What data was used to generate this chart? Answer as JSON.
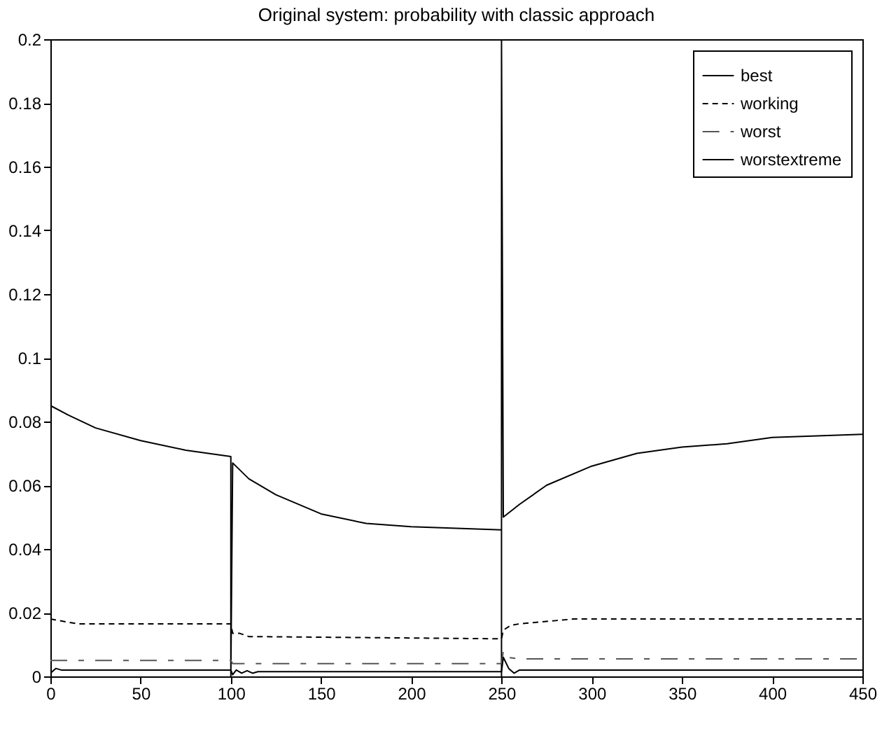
{
  "chart_data": {
    "type": "line",
    "title": "Original system: probability with classic approach",
    "xlim": [
      0,
      450
    ],
    "xticks": [
      0,
      50,
      100,
      150,
      200,
      250,
      300,
      350,
      400,
      450
    ],
    "ylim": [
      0,
      0.2
    ],
    "yticks": [
      0,
      0.02,
      0.04,
      0.06,
      0.08,
      0.1,
      0.12,
      0.14,
      0.16,
      0.18,
      0.2
    ],
    "grid": false,
    "legend": "top right",
    "marker": "none",
    "series": [
      {
        "name": "best",
        "color": "#000000",
        "line_style": "solid",
        "x": [
          0,
          10,
          25,
          50,
          75,
          100,
          100,
          101,
          110,
          125,
          150,
          175,
          200,
          225,
          250,
          250,
          250,
          251,
          260,
          275,
          300,
          325,
          350,
          375,
          400,
          425,
          450
        ],
        "values": [
          0.085,
          0.082,
          0.078,
          0.074,
          0.071,
          0.069,
          0,
          0.067,
          0.062,
          0.057,
          0.051,
          0.048,
          0.047,
          0.0465,
          0.046,
          0,
          0.2,
          0.05,
          0.054,
          0.06,
          0.066,
          0.07,
          0.072,
          0.073,
          0.075,
          0.0755,
          0.076
        ]
      },
      {
        "name": "working",
        "color": "#000000",
        "line_style": "dashed",
        "x": [
          0,
          5,
          15,
          100,
          101,
          105,
          110,
          250,
          251,
          255,
          260,
          280,
          290,
          450
        ],
        "values": [
          0.018,
          0.0175,
          0.0165,
          0.0165,
          0.0135,
          0.0135,
          0.0125,
          0.0118,
          0.0145,
          0.016,
          0.0165,
          0.0175,
          0.018,
          0.018
        ]
      },
      {
        "name": "worst",
        "color": "#555555",
        "line_style": "dashdot",
        "x": [
          0,
          100,
          101,
          250,
          251,
          253,
          260,
          450
        ],
        "values": [
          0.005,
          0.005,
          0.004,
          0.004,
          0.008,
          0.006,
          0.0055,
          0.0055
        ]
      },
      {
        "name": "worstextreme",
        "color": "#000000",
        "line_style": "solid",
        "x": [
          0,
          3,
          6,
          100,
          101,
          103,
          106,
          109,
          112,
          115,
          120,
          250,
          251,
          254,
          257,
          260,
          265,
          450
        ],
        "values": [
          0.001,
          0.0025,
          0.002,
          0.002,
          0.0005,
          0.002,
          0.001,
          0.0018,
          0.001,
          0.0015,
          0.0015,
          0.0015,
          0.006,
          0.0025,
          0.001,
          0.002,
          0.002,
          0.002
        ]
      }
    ]
  }
}
